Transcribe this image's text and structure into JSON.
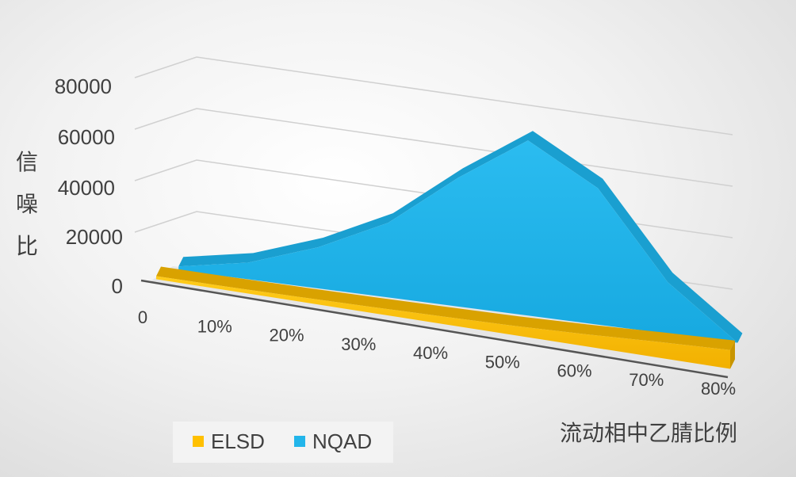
{
  "chart_data": {
    "type": "area",
    "categories": [
      "0",
      "10%",
      "20%",
      "30%",
      "40%",
      "50%",
      "60%",
      "70%",
      "80%"
    ],
    "series": [
      {
        "name": "ELSD",
        "values": [
          1200,
          1400,
          1800,
          2300,
          2900,
          3600,
          4700,
          6100,
          7300
        ]
      },
      {
        "name": "NQAD",
        "values": [
          1500,
          6500,
          16000,
          29000,
          50000,
          68000,
          53000,
          20000,
          0
        ]
      }
    ],
    "yticks": [
      "0",
      "20000",
      "40000",
      "60000",
      "80000"
    ],
    "ylim": [
      0,
      80000
    ],
    "ylabel": "信噪比",
    "xlabel": "流动相中乙腈比例",
    "grid": true,
    "legend_position": "bottom-left",
    "colors": {
      "ELSD": "#ffc000",
      "NQAD": "#22b5ea",
      "grid": "#d0d0d0",
      "floor": "#a6a6a6"
    }
  }
}
